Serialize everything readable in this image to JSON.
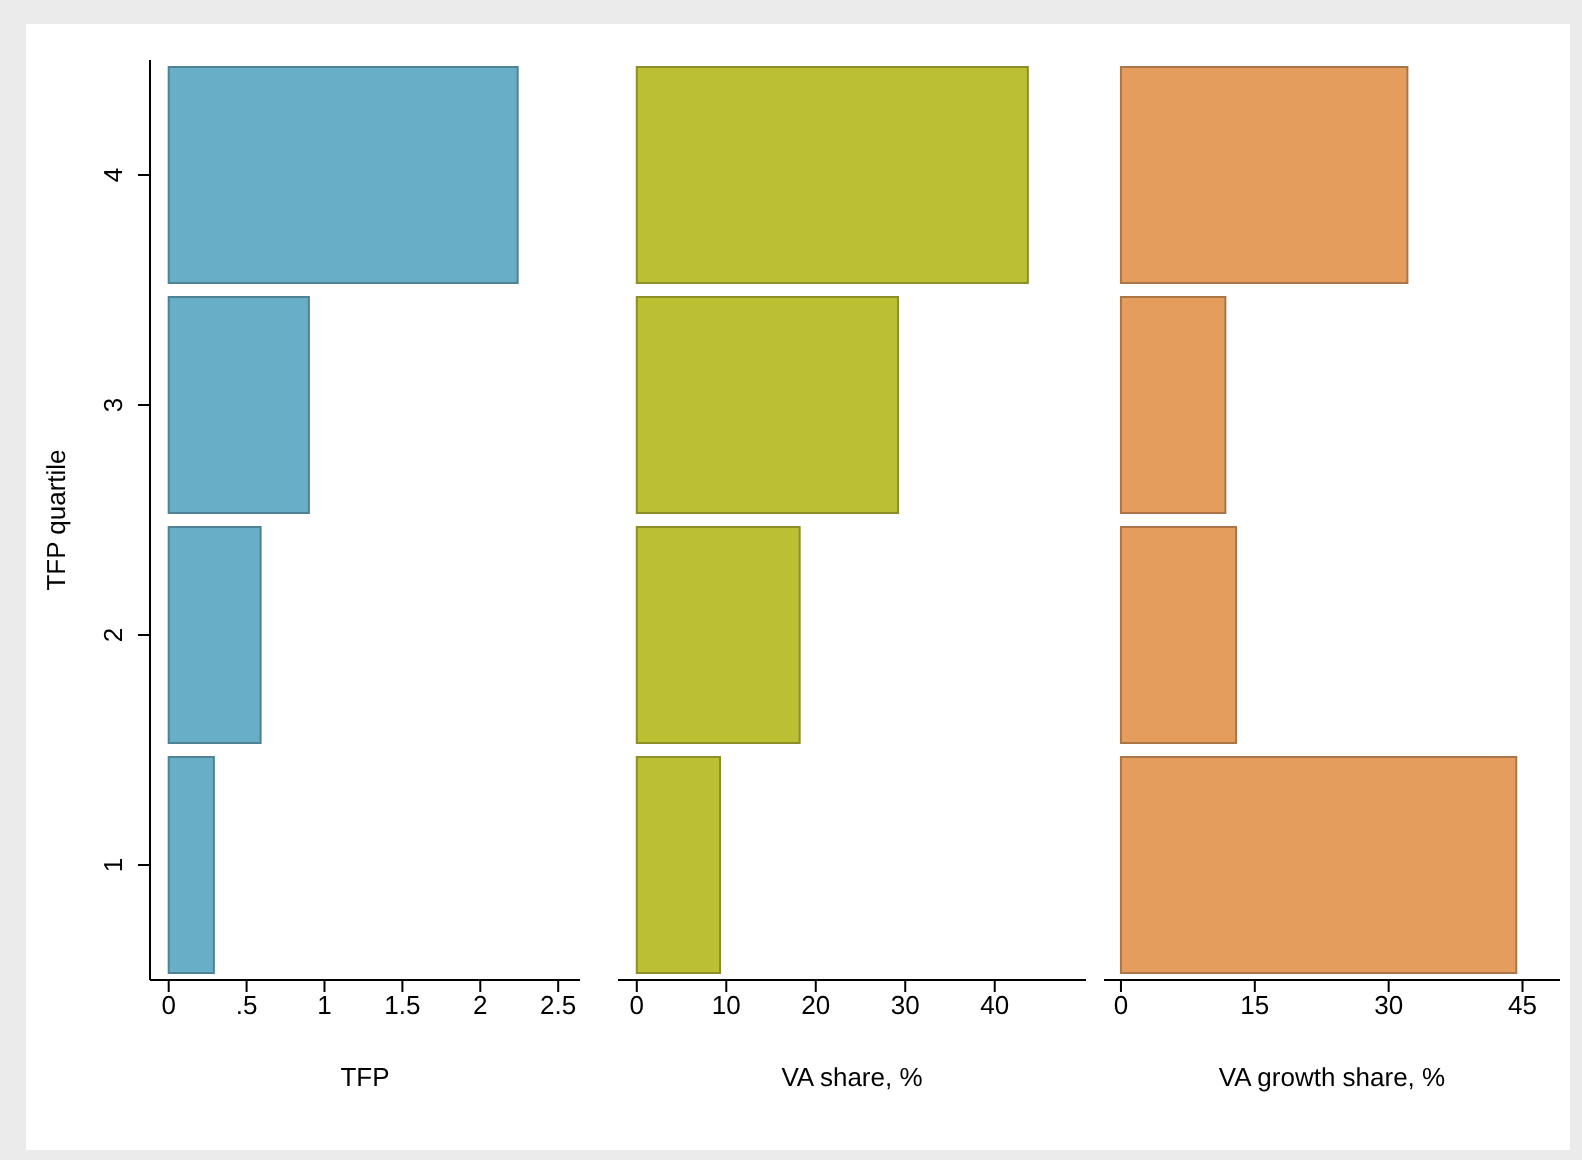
{
  "chart_data": [
    {
      "type": "bar",
      "orientation": "horizontal",
      "categories": [
        "4",
        "3",
        "2",
        "1"
      ],
      "values": [
        2.24,
        0.9,
        0.59,
        0.29
      ],
      "color": "#67aec6",
      "xlabel": "TFP",
      "ylabel": "TFP quartile",
      "xlim": [
        -0.12,
        2.64
      ],
      "xticks": [
        0,
        {
          "value": 0.5,
          "label": ".5"
        },
        1,
        1.5,
        2,
        2.5
      ]
    },
    {
      "type": "bar",
      "orientation": "horizontal",
      "categories": [
        "4",
        "3",
        "2",
        "1"
      ],
      "values": [
        43.7,
        29.2,
        18.2,
        9.3
      ],
      "color": "#bbbf33",
      "xlabel": "VA share, %",
      "xlim": [
        -2.1,
        50.2
      ],
      "xticks": [
        0,
        10,
        20,
        30,
        40
      ],
      "tick_labels": "x"
    },
    {
      "type": "bar",
      "orientation": "horizontal",
      "categories": [
        "4",
        "3",
        "2",
        "1"
      ],
      "values": [
        32.1,
        11.7,
        12.9,
        44.3
      ],
      "color": "#e49d5c",
      "xlabel": "VA growth share, %",
      "xlim": [
        -1.9,
        49.2
      ],
      "xticks": [
        0,
        15,
        30,
        45
      ],
      "tick_labels": "x"
    }
  ]
}
